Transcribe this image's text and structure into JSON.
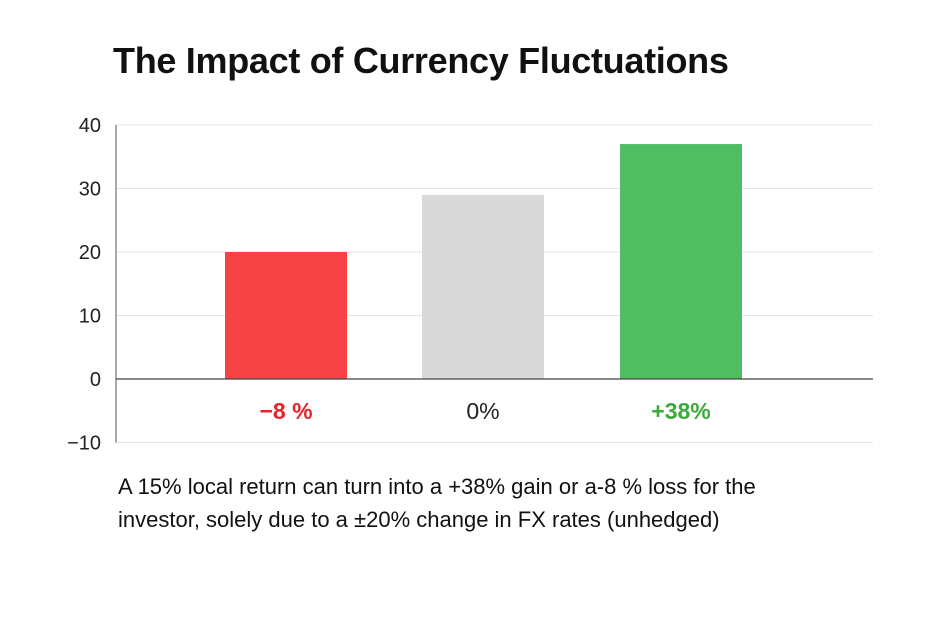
{
  "chart_data": {
    "type": "bar",
    "title": "The Impact of Currency Fluctuations",
    "categories": [
      "−8 %",
      "0%",
      "+38%"
    ],
    "values": [
      20,
      29,
      37
    ],
    "colors": [
      "#f64145",
      "#d9d9d9",
      "#4fbe62"
    ],
    "label_colors": [
      "#e8232b",
      "#222222",
      "#3aaa3a"
    ],
    "yticks": [
      "40",
      "30",
      "20",
      "10",
      "0",
      "−10"
    ],
    "ytick_values": [
      40,
      30,
      20,
      10,
      0,
      -10
    ],
    "ylim": [
      -10,
      40
    ],
    "xlabel": "",
    "ylabel": "",
    "grid": true
  },
  "caption": {
    "line1": "A 15% local return can turn into a +38% gain or a-8 % loss for the",
    "line2": "investor, solely due to a ±20% change in FX rates (unhedged)"
  }
}
